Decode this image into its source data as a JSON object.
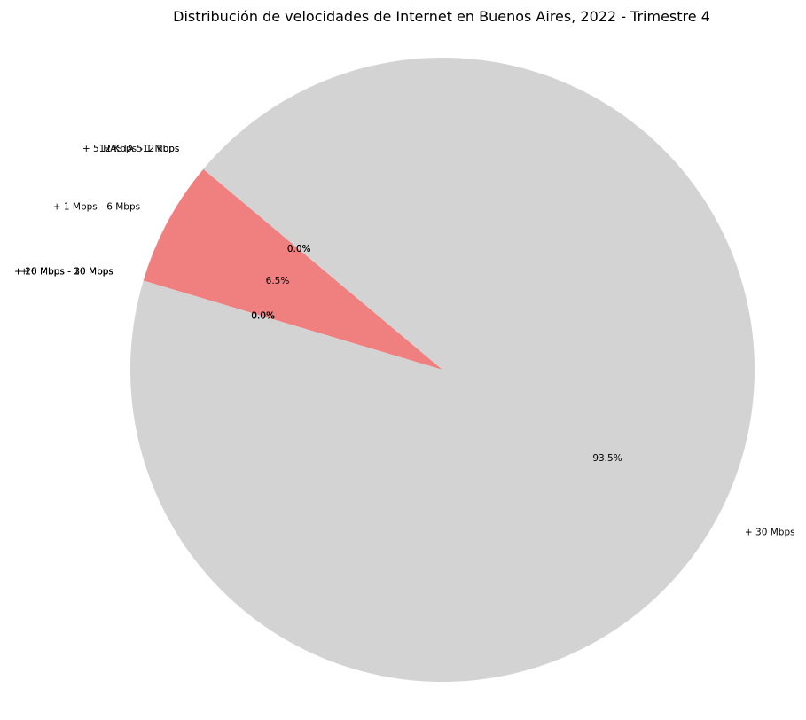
{
  "chart_data": {
    "type": "pie",
    "title": "Distribución de velocidades de Internet en Buenos Aires, 2022 - Trimestre 4",
    "start_angle_deg": 140,
    "direction": "counterclockwise",
    "slices": [
      {
        "label": "HASTA 512 kbps",
        "value": 0.0,
        "pct_label": "0.0%",
        "color": "#ff9999"
      },
      {
        "label": "+ 512 Kbps - 1 Mbps",
        "value": 0.0,
        "pct_label": "0.0%",
        "color": "#66b3ff"
      },
      {
        "label": "+ 1 Mbps - 6 Mbps",
        "value": 6.5,
        "pct_label": "6.5%",
        "color": "#f08080"
      },
      {
        "label": "+ 6 Mbps - 10 Mbps",
        "value": 0.0,
        "pct_label": "0.0%",
        "color": "#ffcc99"
      },
      {
        "label": "+ 10 Mbps - 20 Mbps",
        "value": 0.0,
        "pct_label": "0.0%",
        "color": "#99ff99"
      },
      {
        "label": "+ 20 Mbps - 30 Mbps",
        "value": 0.0,
        "pct_label": "0.0%",
        "color": "#c2c2f0"
      },
      {
        "label": "+ 30 Mbps",
        "value": 93.5,
        "pct_label": "93.5%",
        "color": "#d3d3d3"
      }
    ]
  }
}
